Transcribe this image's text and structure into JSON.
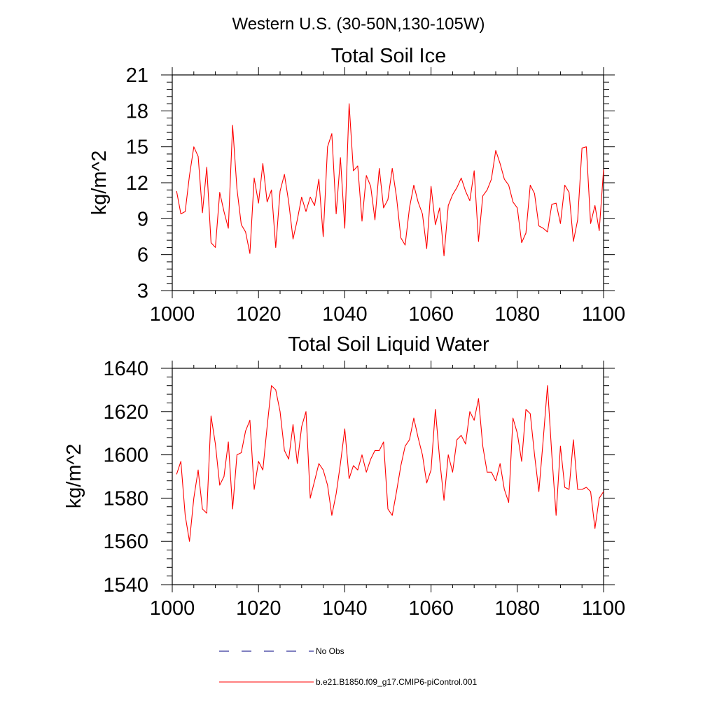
{
  "super_title": "Western U.S. (30-50N,130-105W)",
  "colors": {
    "series": "#ff0000",
    "obs": "#000080"
  },
  "legend": {
    "obs_label": "No Obs",
    "model_label": "b.e21.B1850.f09_g17.CMIP6-piControl.001"
  },
  "chart_data": [
    {
      "type": "line",
      "title": "Total Soil Ice",
      "xlabel": "",
      "ylabel": "kg/m^2",
      "xlim": [
        1000,
        1100
      ],
      "ylim": [
        3,
        21
      ],
      "xticks": [
        1000,
        1020,
        1040,
        1060,
        1080,
        1100
      ],
      "yticks": [
        3,
        6,
        9,
        12,
        15,
        18,
        21
      ],
      "x_start": 1001,
      "series": [
        {
          "name": "b.e21.B1850.f09_g17.CMIP6-piControl.001",
          "values": [
            11.3,
            9.4,
            9.6,
            12.6,
            15.0,
            14.2,
            9.5,
            13.3,
            7.0,
            6.6,
            11.2,
            9.6,
            8.2,
            16.8,
            11.5,
            8.5,
            7.9,
            6.1,
            12.4,
            10.3,
            13.6,
            10.4,
            11.4,
            6.6,
            11.3,
            12.7,
            10.4,
            7.3,
            8.9,
            10.8,
            9.6,
            10.8,
            10.1,
            12.3,
            7.5,
            15.0,
            16.1,
            9.4,
            14.1,
            8.2,
            18.6,
            13.0,
            13.4,
            8.8,
            12.6,
            11.7,
            8.9,
            13.2,
            9.9,
            10.6,
            13.2,
            10.8,
            7.4,
            6.8,
            9.9,
            11.8,
            10.4,
            9.4,
            6.5,
            11.7,
            8.5,
            9.9,
            5.9,
            10.1,
            11.0,
            11.6,
            12.4,
            11.3,
            10.5,
            13.0,
            7.1,
            10.9,
            11.4,
            12.3,
            14.7,
            13.6,
            12.3,
            11.8,
            10.4,
            9.9,
            7.0,
            7.8,
            11.8,
            11.1,
            8.4,
            8.2,
            7.9,
            10.2,
            10.3,
            8.6,
            11.8,
            11.2,
            7.1,
            8.9,
            14.9,
            15.0,
            8.6,
            10.1,
            8.0,
            13.1
          ]
        }
      ]
    },
    {
      "type": "line",
      "title": "Total Soil Liquid Water",
      "xlabel": "",
      "ylabel": "kg/m^2",
      "xlim": [
        1000,
        1100
      ],
      "ylim": [
        1540,
        1640
      ],
      "xticks": [
        1000,
        1020,
        1040,
        1060,
        1080,
        1100
      ],
      "yticks": [
        1540,
        1560,
        1580,
        1600,
        1620,
        1640
      ],
      "x_start": 1001,
      "series": [
        {
          "name": "b.e21.B1850.f09_g17.CMIP6-piControl.001",
          "values": [
            1591,
            1597,
            1572,
            1560,
            1580,
            1593,
            1575,
            1573,
            1618,
            1605,
            1586,
            1590,
            1606,
            1575,
            1600,
            1601,
            1611,
            1616,
            1584,
            1597,
            1593,
            1613,
            1632,
            1630,
            1620,
            1602,
            1598,
            1614,
            1596,
            1613,
            1620,
            1580,
            1588,
            1596,
            1593,
            1586,
            1572,
            1582,
            1596,
            1612,
            1589,
            1595,
            1593,
            1600,
            1592,
            1598,
            1602,
            1602,
            1606,
            1575,
            1572,
            1583,
            1595,
            1604,
            1607,
            1617,
            1608,
            1600,
            1587,
            1593,
            1621,
            1598,
            1579,
            1600,
            1592,
            1607,
            1609,
            1605,
            1620,
            1616,
            1626,
            1604,
            1592,
            1592,
            1588,
            1596,
            1584,
            1578,
            1617,
            1610,
            1597,
            1621,
            1619,
            1600,
            1583,
            1607,
            1632,
            1600,
            1572,
            1604,
            1585,
            1584,
            1607,
            1584,
            1584,
            1585,
            1583,
            1566,
            1580,
            1583
          ]
        }
      ]
    }
  ]
}
